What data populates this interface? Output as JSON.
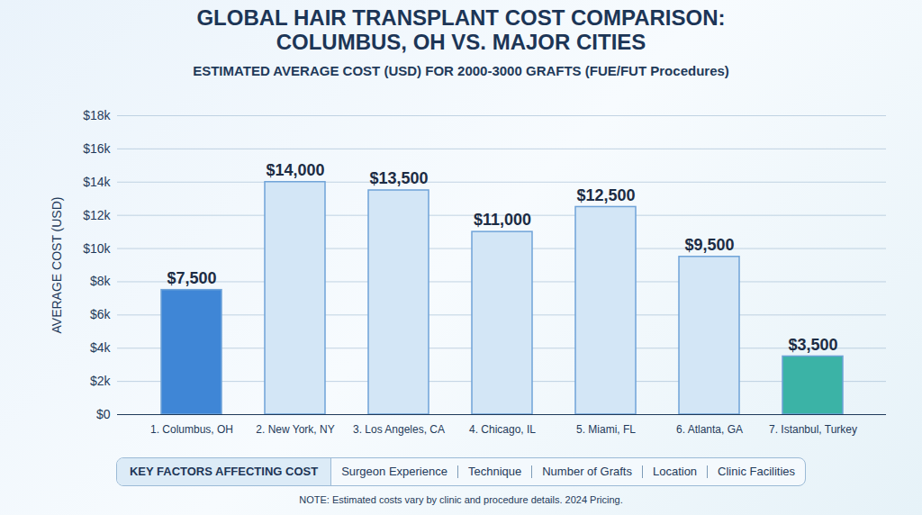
{
  "chart_data": {
    "type": "bar",
    "title": "GLOBAL HAIR TRANSPLANT COST COMPARISON: COLUMBUS, OH VS. MAJOR CITIES",
    "subtitle": "ESTIMATED AVERAGE COST (USD) FOR 2000-3000 GRAFTS (FUE/FUT Procedures)",
    "y_label": "AVERAGE COST (USD)",
    "categories": [
      "1. Columbus, OH",
      "2. New York, NY",
      "3. Los Angeles, CA",
      "4. Chicago, IL",
      "5. Miami, FL",
      "6. Atlanta, GA",
      "7. Istanbul, Turkey"
    ],
    "values": [
      7500,
      14000,
      13500,
      11000,
      12500,
      9500,
      3500
    ],
    "value_labels": [
      "$7,500",
      "$14,000",
      "$13,500",
      "$11,000",
      "$12,500",
      "$9,500",
      "$3,500"
    ],
    "colors": [
      "#3f86d6",
      "#d3e6f6",
      "#d3e6f6",
      "#d3e6f6",
      "#d3e6f6",
      "#d3e6f6",
      "#3bb3a6"
    ],
    "ylim": [
      0,
      18000
    ],
    "yticks": [
      {
        "value": 0,
        "label": "$0"
      },
      {
        "value": 2000,
        "label": "$2k"
      },
      {
        "value": 4000,
        "label": "$4k"
      },
      {
        "value": 6000,
        "label": "$6k"
      },
      {
        "value": 8000,
        "label": "$8k"
      },
      {
        "value": 10000,
        "label": "$10k"
      },
      {
        "value": 12000,
        "label": "$12k"
      },
      {
        "value": 14000,
        "label": "$14k"
      },
      {
        "value": 16000,
        "label": "$16k"
      },
      {
        "value": 18000,
        "label": "$18k"
      }
    ],
    "grid": true,
    "data_labels": true,
    "key_factors_title": "KEY FACTORS AFFECTING COST",
    "key_factors": [
      "Surgeon Experience",
      "Technique",
      "Number of Grafts",
      "Location",
      "Clinic Facilities"
    ],
    "note": "NOTE: Estimated costs vary by clinic and procedure details. 2024 Pricing."
  }
}
